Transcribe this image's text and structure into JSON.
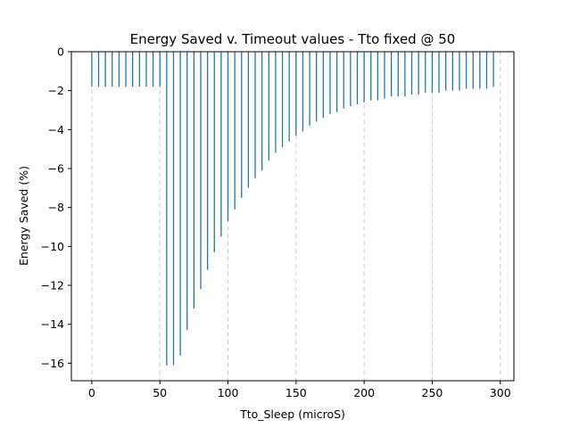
{
  "chart_data": {
    "type": "bar",
    "title": "Energy Saved v. Timeout values - Tto fixed @ 50",
    "xlabel": "Tto_Sleep (microS)",
    "ylabel": "Energy Saved (%)",
    "xlim": [
      -15,
      310
    ],
    "ylim": [
      -16.9,
      0
    ],
    "xticks": [
      0,
      50,
      100,
      150,
      200,
      250,
      300
    ],
    "yticks": [
      0,
      -2,
      -4,
      -6,
      -8,
      -10,
      -12,
      -14,
      -16
    ],
    "ytick_labels": [
      "0",
      "−2",
      "−4",
      "−6",
      "−8",
      "−10",
      "−12",
      "−14",
      "−16"
    ],
    "grid": "x dashed",
    "color": "#1f77b4",
    "series": [
      {
        "x": [
          0,
          5,
          10,
          15,
          20,
          25,
          30,
          35,
          40,
          45,
          50,
          55,
          60,
          65,
          70,
          75,
          80,
          85,
          90,
          95,
          100,
          105,
          110,
          115,
          120,
          125,
          130,
          135,
          140,
          145,
          150,
          155,
          160,
          165,
          170,
          175,
          180,
          185,
          190,
          195,
          200,
          205,
          210,
          215,
          220,
          225,
          230,
          235,
          240,
          245,
          250,
          255,
          260,
          265,
          270,
          275,
          280,
          285,
          290,
          295
        ],
        "values": [
          -1.8,
          -1.8,
          -1.8,
          -1.8,
          -1.8,
          -1.8,
          -1.8,
          -1.8,
          -1.8,
          -1.8,
          -1.8,
          -16.1,
          -16.1,
          -15.6,
          -14.3,
          -13.2,
          -12.2,
          -11.2,
          -10.3,
          -9.5,
          -8.7,
          -8.1,
          -7.5,
          -7.0,
          -6.5,
          -6.1,
          -5.6,
          -5.2,
          -4.9,
          -4.6,
          -4.3,
          -4.1,
          -3.8,
          -3.6,
          -3.4,
          -3.2,
          -3.1,
          -2.9,
          -2.8,
          -2.7,
          -2.6,
          -2.5,
          -2.5,
          -2.4,
          -2.3,
          -2.3,
          -2.3,
          -2.2,
          -2.2,
          -2.1,
          -2.1,
          -2.1,
          -2.0,
          -2.0,
          -2.0,
          -1.9,
          -1.9,
          -1.9,
          -1.9,
          -1.8
        ]
      }
    ]
  }
}
